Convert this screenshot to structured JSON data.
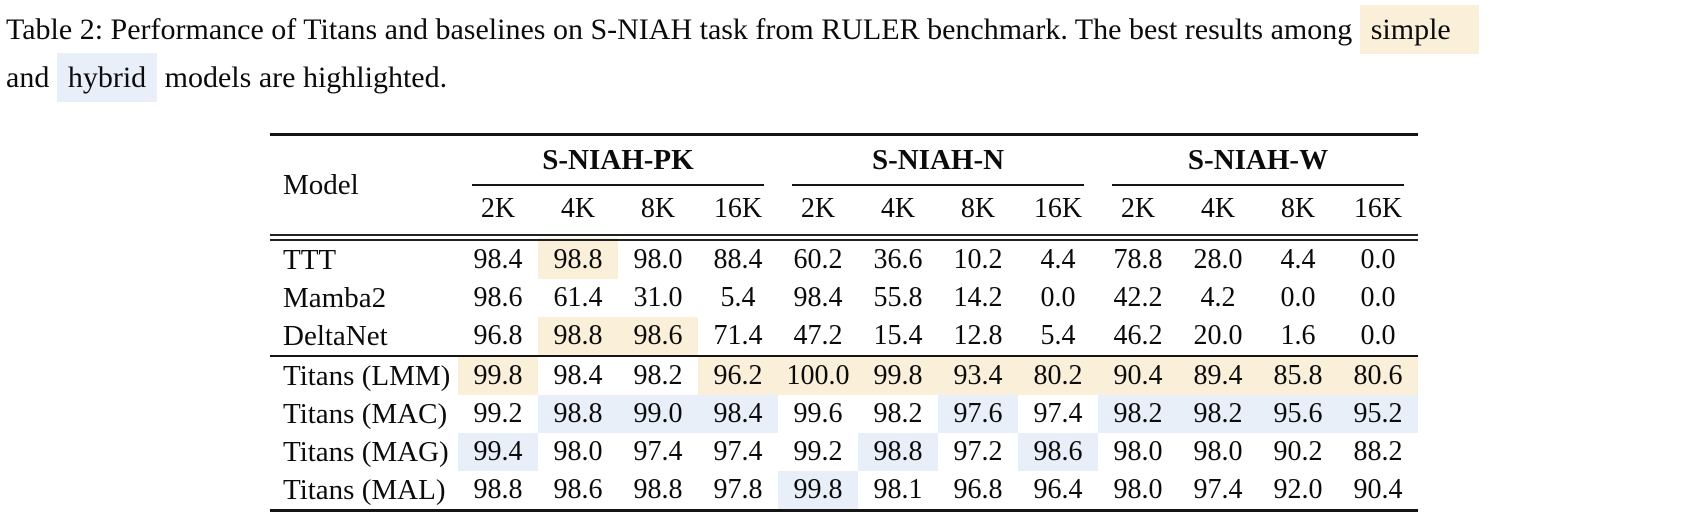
{
  "caption": {
    "text_before_simple": "Table 2: Performance of Titans and baselines on S-NIAH task from RULER benchmark. The best results among",
    "simple_label": "simple",
    "text_between": "and",
    "hybrid_label": "hybrid",
    "text_after": "models are highlighted."
  },
  "colors": {
    "simple_highlight": "#faf0da",
    "hybrid_highlight": "#e9eff8",
    "rule": "#151515",
    "text": "#0b0b0b"
  },
  "table": {
    "model_header": "Model",
    "groups": [
      {
        "label": "S-NIAH-PK",
        "cols": [
          "2K",
          "4K",
          "8K",
          "16K"
        ]
      },
      {
        "label": "S-NIAH-N",
        "cols": [
          "2K",
          "4K",
          "8K",
          "16K"
        ]
      },
      {
        "label": "S-NIAH-W",
        "cols": [
          "2K",
          "4K",
          "8K",
          "16K"
        ]
      }
    ],
    "sections": [
      {
        "name": "simple-baselines",
        "rows": [
          {
            "model": "TTT",
            "values": [
              "98.4",
              "98.8",
              "98.0",
              "88.4",
              "60.2",
              "36.6",
              "10.2",
              "4.4",
              "78.8",
              "28.0",
              "4.4",
              "0.0"
            ],
            "highlights": [
              "",
              "s",
              "",
              "",
              "",
              "",
              "",
              "",
              "",
              "",
              "",
              ""
            ]
          },
          {
            "model": "Mamba2",
            "values": [
              "98.6",
              "61.4",
              "31.0",
              "5.4",
              "98.4",
              "55.8",
              "14.2",
              "0.0",
              "42.2",
              "4.2",
              "0.0",
              "0.0"
            ],
            "highlights": [
              "",
              "",
              "",
              "",
              "",
              "",
              "",
              "",
              "",
              "",
              "",
              ""
            ]
          },
          {
            "model": "DeltaNet",
            "values": [
              "96.8",
              "98.8",
              "98.6",
              "71.4",
              "47.2",
              "15.4",
              "12.8",
              "5.4",
              "46.2",
              "20.0",
              "1.6",
              "0.0"
            ],
            "highlights": [
              "",
              "s",
              "s",
              "",
              "",
              "",
              "",
              "",
              "",
              "",
              "",
              ""
            ]
          }
        ]
      },
      {
        "name": "titans-models",
        "rows": [
          {
            "model": "Titans (LMM)",
            "values": [
              "99.8",
              "98.4",
              "98.2",
              "96.2",
              "100.0",
              "99.8",
              "93.4",
              "80.2",
              "90.4",
              "89.4",
              "85.8",
              "80.6"
            ],
            "highlights": [
              "s",
              "",
              "",
              "s",
              "s",
              "s",
              "s",
              "s",
              "s",
              "s",
              "s",
              "s"
            ]
          },
          {
            "model": "Titans (MAC)",
            "values": [
              "99.2",
              "98.8",
              "99.0",
              "98.4",
              "99.6",
              "98.2",
              "97.6",
              "97.4",
              "98.2",
              "98.2",
              "95.6",
              "95.2"
            ],
            "highlights": [
              "",
              "h",
              "h",
              "h",
              "",
              "",
              "h",
              "",
              "h",
              "h",
              "h",
              "h"
            ]
          },
          {
            "model": "Titans (MAG)",
            "values": [
              "99.4",
              "98.0",
              "97.4",
              "97.4",
              "99.2",
              "98.8",
              "97.2",
              "98.6",
              "98.0",
              "98.0",
              "90.2",
              "88.2"
            ],
            "highlights": [
              "h",
              "",
              "",
              "",
              "",
              "h",
              "",
              "h",
              "",
              "",
              "",
              ""
            ]
          },
          {
            "model": "Titans (MAL)",
            "values": [
              "98.8",
              "98.6",
              "98.8",
              "97.8",
              "99.8",
              "98.1",
              "96.8",
              "96.4",
              "98.0",
              "97.4",
              "92.0",
              "90.4"
            ],
            "highlights": [
              "",
              "",
              "",
              "",
              "h",
              "",
              "",
              "",
              "",
              "",
              "",
              ""
            ]
          }
        ]
      }
    ]
  }
}
